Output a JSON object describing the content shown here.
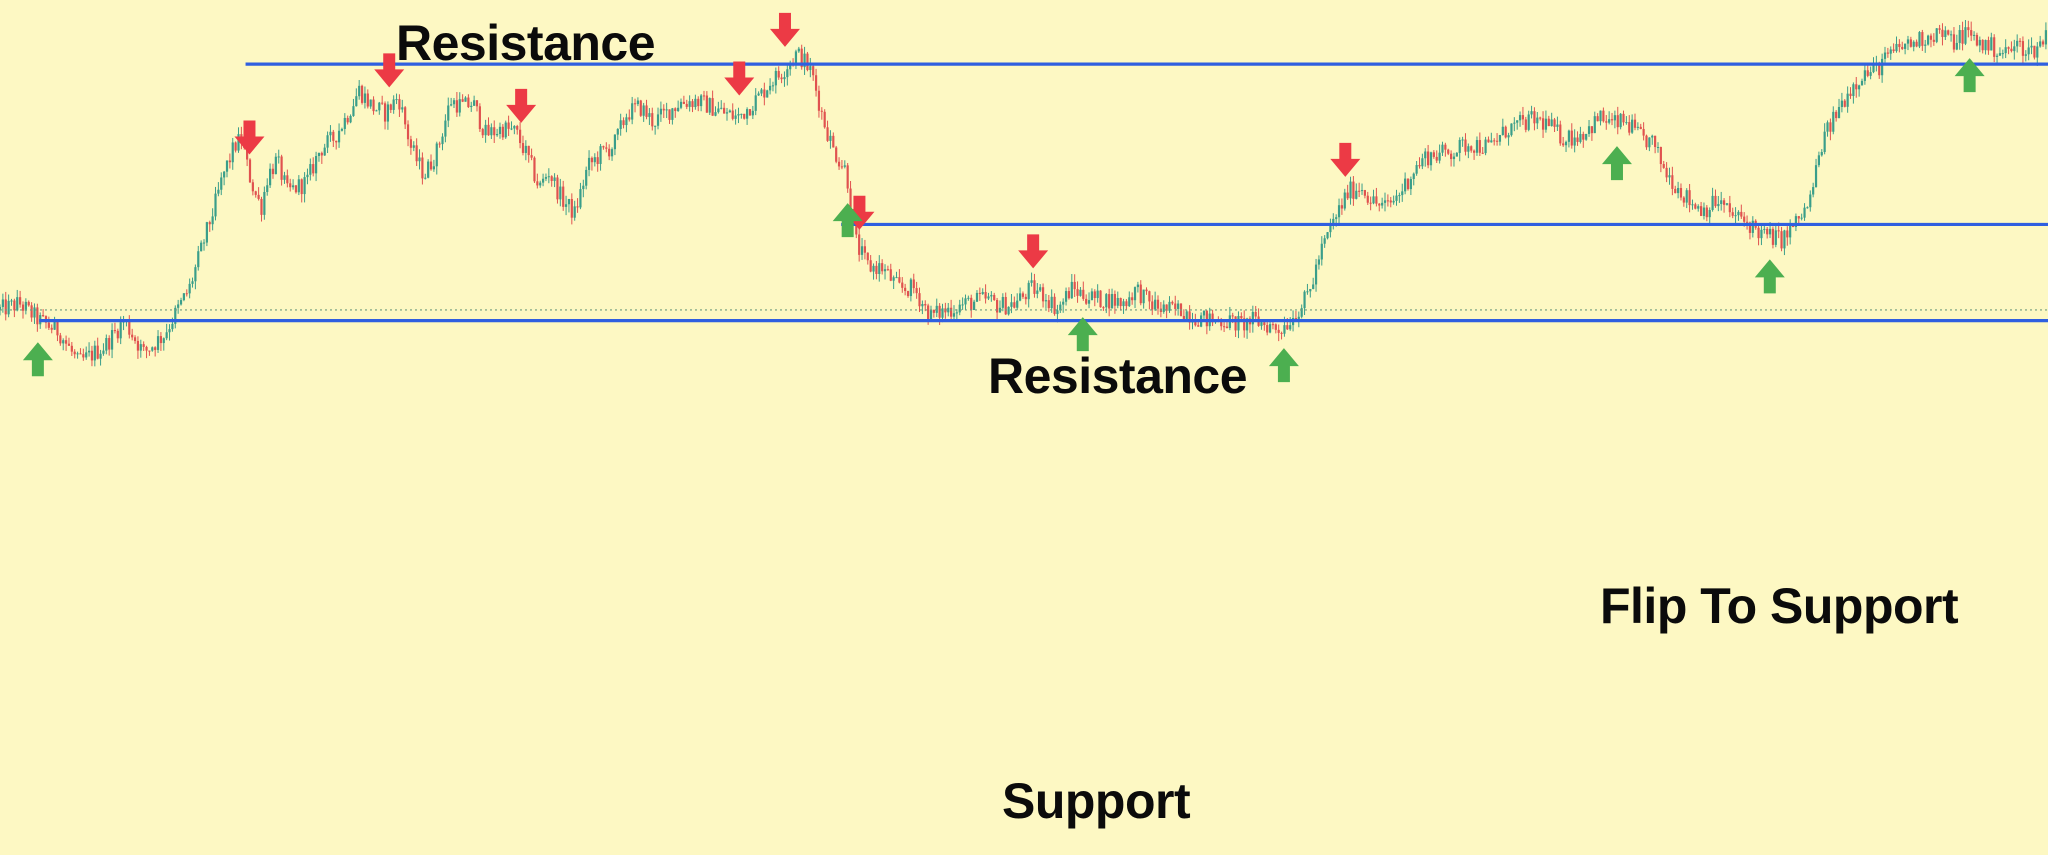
{
  "chart_data": {
    "type": "candlestick",
    "title": "",
    "xlabel": "",
    "ylabel": "",
    "grid": false,
    "legend": "none",
    "colors": {
      "background": "#fdf8c3",
      "level_line": "#2f5fe0",
      "up_candle": "#3a9e8a",
      "down_candle": "#e0524f",
      "resistance_arrow": "#ec3a45",
      "support_arrow": "#4caf50",
      "dotted_line": "#6f9a7e"
    },
    "price_path": [
      [
        0,
        255
      ],
      [
        15,
        258
      ],
      [
        30,
        250
      ],
      [
        45,
        245
      ],
      [
        60,
        230
      ],
      [
        80,
        238
      ],
      [
        95,
        250
      ],
      [
        110,
        235
      ],
      [
        125,
        243
      ],
      [
        145,
        265
      ],
      [
        155,
        285
      ],
      [
        165,
        305
      ],
      [
        172,
        320
      ],
      [
        180,
        332
      ],
      [
        185,
        335
      ],
      [
        190,
        320
      ],
      [
        195,
        310
      ],
      [
        200,
        303
      ],
      [
        205,
        318
      ],
      [
        212,
        325
      ],
      [
        220,
        310
      ],
      [
        235,
        315
      ],
      [
        245,
        330
      ],
      [
        255,
        335
      ],
      [
        265,
        345
      ],
      [
        275,
        358
      ],
      [
        285,
        350
      ],
      [
        295,
        347
      ],
      [
        305,
        355
      ],
      [
        315,
        330
      ],
      [
        325,
        318
      ],
      [
        335,
        330
      ],
      [
        345,
        353
      ],
      [
        355,
        350
      ],
      [
        362,
        352
      ],
      [
        372,
        337
      ],
      [
        385,
        340
      ],
      [
        395,
        338
      ],
      [
        405,
        325
      ],
      [
        413,
        312
      ],
      [
        420,
        320
      ],
      [
        430,
        307
      ],
      [
        440,
        300
      ],
      [
        450,
        322
      ],
      [
        460,
        328
      ],
      [
        470,
        332
      ],
      [
        480,
        347
      ],
      [
        490,
        350
      ],
      [
        500,
        343
      ],
      [
        510,
        347
      ],
      [
        520,
        352
      ],
      [
        532,
        353
      ],
      [
        545,
        350
      ],
      [
        555,
        347
      ],
      [
        565,
        345
      ],
      [
        575,
        351
      ],
      [
        583,
        356
      ],
      [
        590,
        362
      ],
      [
        597,
        365
      ],
      [
        603,
        370
      ],
      [
        610,
        375
      ],
      [
        615,
        372
      ],
      [
        622,
        365
      ],
      [
        630,
        345
      ],
      [
        638,
        330
      ],
      [
        648,
        320
      ],
      [
        656,
        285
      ],
      [
        665,
        275
      ],
      [
        675,
        275
      ],
      [
        688,
        265
      ],
      [
        700,
        265
      ],
      [
        712,
        252
      ],
      [
        725,
        255
      ],
      [
        740,
        258
      ],
      [
        755,
        260
      ],
      [
        765,
        257
      ],
      [
        777,
        258
      ],
      [
        790,
        265
      ],
      [
        800,
        262
      ],
      [
        810,
        255
      ],
      [
        820,
        265
      ],
      [
        830,
        262
      ],
      [
        840,
        260
      ],
      [
        850,
        260
      ],
      [
        860,
        258
      ],
      [
        870,
        265
      ],
      [
        880,
        258
      ],
      [
        892,
        255
      ],
      [
        905,
        255
      ],
      [
        915,
        252
      ],
      [
        925,
        250
      ],
      [
        938,
        250
      ],
      [
        950,
        248
      ],
      [
        960,
        250
      ],
      [
        970,
        248
      ],
      [
        980,
        246
      ],
      [
        990,
        252
      ],
      [
        998,
        258
      ],
      [
        1004,
        266
      ],
      [
        1010,
        280
      ],
      [
        1020,
        295
      ],
      [
        1032,
        310
      ],
      [
        1042,
        313
      ],
      [
        1052,
        305
      ],
      [
        1062,
        303
      ],
      [
        1072,
        310
      ],
      [
        1082,
        320
      ],
      [
        1092,
        327
      ],
      [
        1102,
        328
      ],
      [
        1112,
        329
      ],
      [
        1125,
        333
      ],
      [
        1140,
        331
      ],
      [
        1155,
        340
      ],
      [
        1165,
        342
      ],
      [
        1175,
        344
      ],
      [
        1185,
        342
      ],
      [
        1195,
        336
      ],
      [
        1205,
        336
      ],
      [
        1215,
        339
      ],
      [
        1225,
        345
      ],
      [
        1235,
        342
      ],
      [
        1245,
        343
      ],
      [
        1255,
        336
      ],
      [
        1265,
        333
      ],
      [
        1275,
        320
      ],
      [
        1285,
        312
      ],
      [
        1295,
        305
      ],
      [
        1305,
        302
      ],
      [
        1315,
        306
      ],
      [
        1325,
        300
      ],
      [
        1340,
        295
      ],
      [
        1350,
        290
      ],
      [
        1365,
        288
      ],
      [
        1372,
        293
      ],
      [
        1385,
        304
      ],
      [
        1395,
        333
      ],
      [
        1405,
        346
      ],
      [
        1415,
        357
      ],
      [
        1425,
        365
      ],
      [
        1435,
        367
      ],
      [
        1445,
        373
      ],
      [
        1455,
        378
      ],
      [
        1465,
        380
      ],
      [
        1475,
        383
      ],
      [
        1485,
        385
      ],
      [
        1495,
        380
      ],
      [
        1505,
        385
      ],
      [
        1515,
        380
      ],
      [
        1525,
        378
      ],
      [
        1535,
        375
      ],
      [
        1545,
        379
      ],
      [
        1555,
        376
      ],
      [
        1560,
        378
      ],
      [
        1568,
        385
      ]
    ],
    "levels": [
      {
        "name": "resistance-upper",
        "y": 370,
        "x_start": 188
      },
      {
        "name": "resistance-middle",
        "y": 295,
        "x_start": 644
      },
      {
        "name": "support",
        "y": 250,
        "x_start": 30
      }
    ],
    "dotted_reference": {
      "y": 255
    },
    "resistance_arrows_x": [
      191,
      298,
      399,
      566,
      601,
      658,
      791,
      1030
    ],
    "support_arrows_x": [
      29,
      649,
      829,
      983,
      1238,
      1355,
      1508
    ],
    "annotations": {
      "resistance_top": "Resistance",
      "resistance_mid": "Resistance",
      "flip_to_support": "Flip To Support",
      "support": "Support"
    }
  }
}
